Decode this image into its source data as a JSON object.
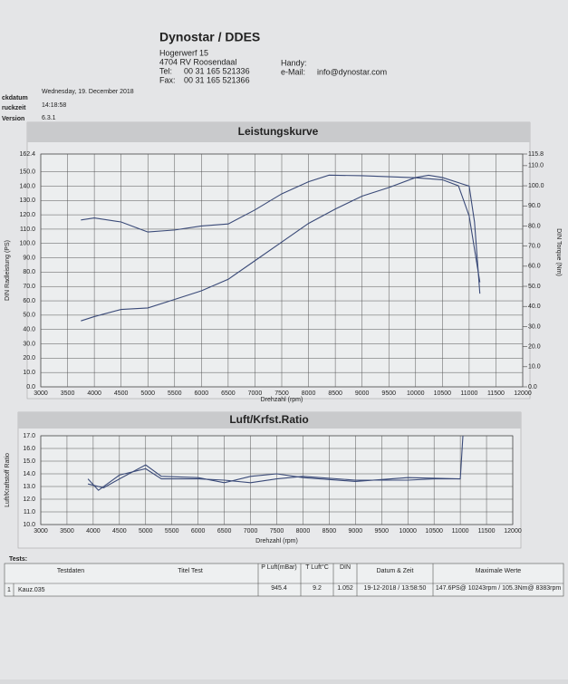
{
  "header": {
    "company": "Dynostar / DDES",
    "street": "Hogerwerf 15",
    "city": "4704 RV Roosendaal",
    "tel_label": "Tel:",
    "tel": "00 31 165 521336",
    "fax_label": "Fax:",
    "fax": "00 31 165 521366",
    "handy": "Handy:",
    "email_label": "e-Mail:",
    "email": "info@dynostar.com"
  },
  "meta": {
    "labels": [
      "ckdatum",
      "ruckzeit",
      "Version"
    ],
    "values": [
      "Wednesday, 19. December 2018",
      "14:18:58",
      "6.3.1"
    ]
  },
  "chart_data": [
    {
      "type": "line",
      "title": "Leistungskurve",
      "x_label": "Drehzahl (rpm)",
      "y_label": "DIN Radleistung (PS)",
      "y2_label": "DIN Torque (Nm)",
      "xlim": [
        3000,
        12000
      ],
      "xticks": [
        3000,
        3500,
        4000,
        4500,
        5000,
        5500,
        6000,
        6500,
        7000,
        7500,
        8000,
        8500,
        9000,
        9500,
        10000,
        10500,
        11000,
        11500,
        12000
      ],
      "ylim": [
        0,
        162.4
      ],
      "yticks": [
        {
          "value": 0,
          "label": "0.0"
        },
        {
          "value": 10,
          "label": "10.0"
        },
        {
          "value": 20,
          "label": "20.0"
        },
        {
          "value": 30,
          "label": "30.0"
        },
        {
          "value": 40,
          "label": "40.0"
        },
        {
          "value": 50,
          "label": "50.0"
        },
        {
          "value": 60,
          "label": "60.0"
        },
        {
          "value": 70,
          "label": "70.0"
        },
        {
          "value": 80,
          "label": "80.0"
        },
        {
          "value": 90,
          "label": "90.0"
        },
        {
          "value": 100,
          "label": "100.0"
        },
        {
          "value": 110,
          "label": "110.0"
        },
        {
          "value": 120,
          "label": "120.0"
        },
        {
          "value": 130,
          "label": "130.0"
        },
        {
          "value": 140,
          "label": "140.0"
        },
        {
          "value": 150,
          "label": "150.0"
        },
        162.4
      ],
      "y2lim": [
        0,
        115.8
      ],
      "y2ticks": [
        {
          "value": 0,
          "label": "0.0"
        },
        {
          "value": 10,
          "label": "10.0"
        },
        {
          "value": 20,
          "label": "20.0"
        },
        {
          "value": 30,
          "label": "30.0"
        },
        {
          "value": 40,
          "label": "40.0"
        },
        {
          "value": 50,
          "label": "50.0"
        },
        {
          "value": 60,
          "label": "60.0"
        },
        {
          "value": 70,
          "label": "70.0"
        },
        {
          "value": 80,
          "label": "80.0"
        },
        {
          "value": 90,
          "label": "90.0"
        },
        {
          "value": 100,
          "label": "100.0"
        },
        {
          "value": 110,
          "label": "110.0"
        },
        115.8
      ],
      "grid": true,
      "series": [
        {
          "color": "#3a4a78",
          "x": [
            3750,
            4000,
            4500,
            5000,
            5500,
            6000,
            6500,
            7000,
            7500,
            8000,
            8500,
            9000,
            9500,
            10000,
            10243,
            10500,
            11000,
            11100,
            11200
          ],
          "values": [
            46,
            49,
            54,
            55,
            61,
            67,
            75,
            88,
            101,
            114,
            124,
            133,
            139,
            146,
            147.6,
            146,
            140,
            115,
            65
          ]
        },
        {
          "color": "#3a4a78",
          "axis": "y2",
          "x": [
            3750,
            4000,
            4500,
            5000,
            5500,
            6000,
            6500,
            7000,
            7500,
            8000,
            8383,
            9000,
            9500,
            10000,
            10500,
            10800,
            11000,
            11200
          ],
          "values": [
            83,
            84,
            82,
            77,
            78,
            80,
            81,
            88,
            96,
            102,
            105.3,
            105,
            104.5,
            104,
            103,
            100,
            85,
            52
          ]
        }
      ]
    },
    {
      "type": "line",
      "title": "Luft/Krfst.Ratio",
      "x_label": "Drehzahl (rpm)",
      "y_label": "Luft/Kraftstoff Ratio",
      "xlim": [
        3000,
        12000
      ],
      "xticks": [
        3000,
        3500,
        4000,
        4500,
        5000,
        5500,
        6000,
        6500,
        7000,
        7500,
        8000,
        8500,
        9000,
        9500,
        10000,
        10500,
        11000,
        11500,
        12000
      ],
      "ylim": [
        10,
        17
      ],
      "yticks": [
        {
          "value": 10,
          "label": "10.0"
        },
        {
          "value": 11,
          "label": "11.0"
        },
        {
          "value": 12,
          "label": "12.0"
        },
        {
          "value": 13,
          "label": "13.0"
        },
        {
          "value": 14,
          "label": "14.0"
        },
        {
          "value": 15,
          "label": "15.0"
        },
        {
          "value": 16,
          "label": "16.0"
        },
        {
          "value": 17,
          "label": "17.0"
        }
      ],
      "grid": true,
      "series": [
        {
          "color": "#3a4a78",
          "x": [
            3900,
            4100,
            4500,
            5000,
            5300,
            6000,
            6500,
            7000,
            7500,
            8000,
            9000,
            10000,
            10500,
            11000
          ],
          "values": [
            13.6,
            12.7,
            13.9,
            14.4,
            13.6,
            13.6,
            13.5,
            13.3,
            13.6,
            13.8,
            13.5,
            13.5,
            13.6,
            13.6
          ]
        },
        {
          "color": "#3a4a78",
          "x": [
            3900,
            4200,
            4500,
            5000,
            5300,
            6000,
            6500,
            7000,
            7500,
            8000,
            9000,
            10000,
            11000,
            11050
          ],
          "values": [
            13.2,
            12.9,
            13.6,
            14.7,
            13.8,
            13.7,
            13.3,
            13.8,
            14,
            13.7,
            13.4,
            13.7,
            13.6,
            17
          ]
        }
      ]
    }
  ],
  "table": {
    "caption": "Tests:",
    "headers": [
      "Testdaten",
      "Titel Test",
      "P Luft(mBar)",
      "T Luft°C",
      "DIN",
      "Datum & Zeit",
      "Maximale Werte"
    ],
    "rows": [
      [
        "1",
        "Kauz.035",
        "945.4",
        "9.2",
        "1.052",
        "19-12-2018 / 13:58:50",
        "147.6PS@ 10243rpm / 105.3Nm@ 8383rpm"
      ]
    ]
  }
}
